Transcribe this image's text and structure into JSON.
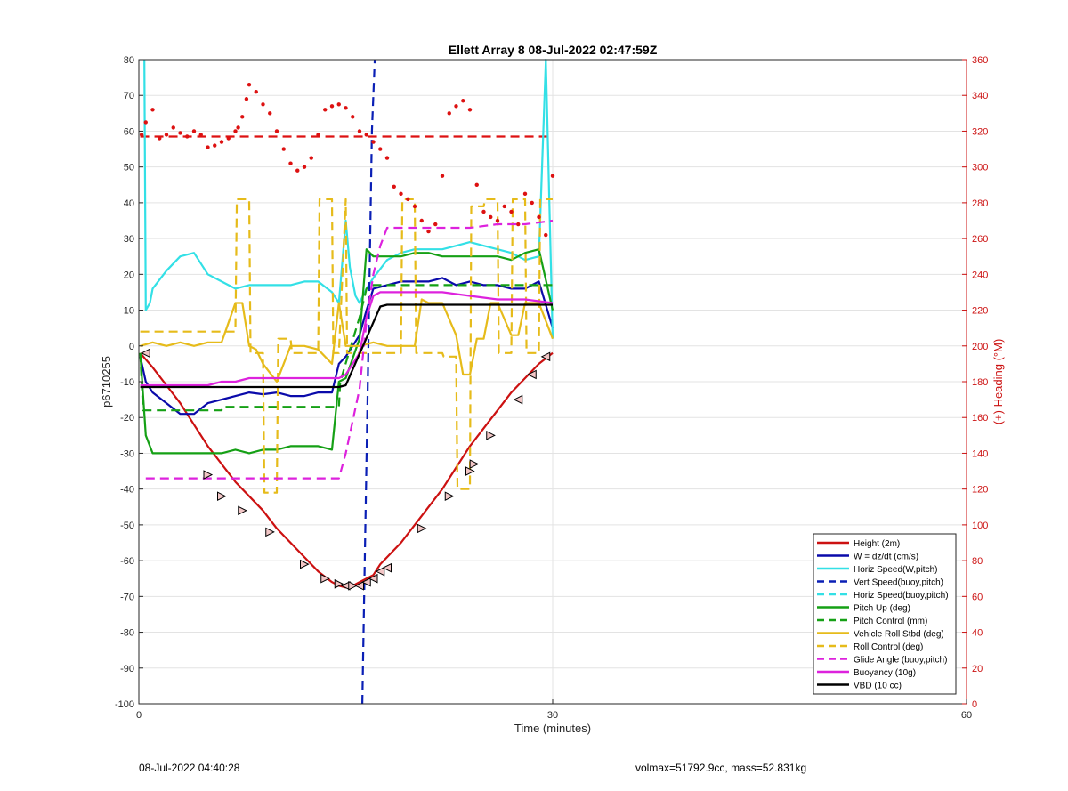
{
  "chart_data": {
    "type": "line",
    "title": "Ellett Array 8 08-Jul-2022 02:47:59Z",
    "xlabel": "Time (minutes)",
    "ylabel": "p6710255",
    "y2label": "(+) Heading (°M)",
    "xlim": [
      0,
      60
    ],
    "ylim": [
      -100,
      80
    ],
    "y2lim": [
      0,
      360
    ],
    "xticks": [
      0,
      30,
      60
    ],
    "yticks": [
      80,
      70,
      60,
      50,
      40,
      30,
      20,
      10,
      0,
      -10,
      -20,
      -30,
      -40,
      -50,
      -60,
      -70,
      -80,
      -90,
      -100
    ],
    "y2ticks": [
      360,
      340,
      320,
      300,
      280,
      260,
      240,
      220,
      200,
      180,
      160,
      140,
      120,
      100,
      80,
      60,
      40,
      20,
      0
    ],
    "grid": true,
    "legend_position": "bottom-right",
    "colors": {
      "height": "#cc1111",
      "w": "#0a0aaa",
      "horiz_w": "#33e0e6",
      "vert_buoy": "#0a1fb5",
      "horiz_buoy": "#33e0e6",
      "pitch": "#15a015",
      "pitch_ctrl": "#15a015",
      "roll": "#e6bb1a",
      "roll_ctrl": "#e6bb1a",
      "glide": "#dd22dd",
      "buoyancy": "#dd22dd",
      "vbd": "#000000",
      "heading": "#dd1111",
      "right_axis": "#cc1111"
    },
    "series": [
      {
        "name": "Height (2m)",
        "style": "solid",
        "color": "#cc1111",
        "x": [
          0.1,
          1,
          2,
          3,
          4,
          5,
          6,
          7,
          8,
          9,
          10,
          11,
          12,
          13,
          14,
          14.5,
          15,
          15.5,
          16,
          16.5,
          17,
          17.5,
          18,
          19,
          20,
          21,
          22,
          23,
          24,
          25,
          26,
          27,
          28,
          29,
          30
        ],
        "values": [
          -2,
          -6,
          -11,
          -16,
          -22,
          -28,
          -33,
          -38,
          -42,
          -46,
          -51,
          -55,
          -59,
          -63,
          -66,
          -67,
          -67.5,
          -67,
          -66,
          -65,
          -64,
          -61,
          -59,
          -55,
          -50,
          -45,
          -40,
          -34,
          -28,
          -23,
          -18,
          -13,
          -9,
          -5,
          -2
        ]
      },
      {
        "name": "W = dz/dt (cm/s)",
        "style": "solid",
        "color": "#0a0aaa",
        "x": [
          0.1,
          0.5,
          1,
          2,
          3,
          4,
          5,
          6,
          7,
          8,
          9,
          10,
          11,
          12,
          13,
          14,
          14.5,
          15,
          16,
          16.5,
          17,
          18,
          19,
          20,
          21,
          22,
          23,
          24,
          25,
          26,
          27,
          28,
          29,
          30
        ],
        "values": [
          -3,
          -10,
          -13,
          -16,
          -19,
          -19,
          -16,
          -15,
          -14,
          -13,
          -13.5,
          -13,
          -14,
          -14,
          -13,
          -13,
          -5,
          -3,
          3,
          10,
          16,
          17,
          18,
          18,
          18,
          19,
          17,
          18,
          17,
          17,
          16,
          16,
          18,
          5
        ]
      },
      {
        "name": "Horiz Speed(W,pitch)",
        "style": "solid",
        "color": "#33e0e6",
        "x": [
          0.4,
          0.5,
          0.8,
          1,
          2,
          3,
          4,
          5,
          6,
          7,
          8,
          9,
          10,
          11,
          12,
          13,
          14,
          14.5,
          15,
          15.3,
          15.7,
          16,
          16.5,
          17,
          18,
          19,
          20,
          21,
          22,
          23,
          24,
          25,
          26,
          27,
          28,
          29,
          29.5,
          30
        ],
        "values": [
          80,
          10,
          12,
          16,
          21,
          25,
          26,
          20,
          18,
          16,
          17,
          17,
          17,
          17,
          18,
          18,
          15,
          12,
          35,
          22,
          14,
          12,
          16,
          19,
          24,
          26,
          27,
          27,
          27,
          28,
          29,
          28,
          27,
          26,
          24,
          25,
          80,
          2
        ]
      },
      {
        "name": "Vert Speed(buoy,pitch)",
        "style": "dashed",
        "color": "#0a1fb5",
        "x": [
          16.2,
          16.6,
          16.9,
          17.1
        ],
        "values": [
          -100,
          -10,
          60,
          80
        ]
      },
      {
        "name": "Horiz Speed(buoy,pitch)",
        "style": "dashed",
        "color": "#33e0e6",
        "x": [],
        "values": []
      },
      {
        "name": "Pitch Up (deg)",
        "style": "solid",
        "color": "#15a015",
        "x": [
          0.1,
          0.5,
          1,
          2,
          3,
          4,
          5,
          6,
          7,
          8,
          9,
          10,
          11,
          12,
          13,
          14,
          14.5,
          15,
          16,
          16.5,
          17,
          18,
          19,
          20,
          21,
          22,
          23,
          24,
          25,
          26,
          27,
          28,
          29,
          30
        ],
        "values": [
          -2,
          -25,
          -30,
          -30,
          -30,
          -30,
          -30,
          -30,
          -29,
          -30,
          -29,
          -29,
          -28,
          -28,
          -28,
          -29,
          -10,
          -9,
          2,
          27,
          25,
          25,
          25,
          26,
          26,
          25,
          25,
          25,
          25,
          25,
          24,
          26,
          27,
          10
        ]
      },
      {
        "name": "Pitch Control (mm)",
        "style": "dashed",
        "color": "#15a015",
        "x": [
          0.1,
          0.3,
          6,
          6.1,
          14.5,
          14.6,
          16,
          16.5,
          17,
          30
        ],
        "values": [
          -2,
          -18,
          -18,
          -17,
          -17,
          -10,
          8,
          16,
          17,
          17
        ]
      },
      {
        "name": "Vehicle Roll Stbd (deg)",
        "style": "solid",
        "color": "#e6bb1a",
        "x": [
          0.1,
          1,
          2,
          3,
          4,
          5,
          6,
          7,
          7.5,
          8,
          8.5,
          9,
          10,
          11,
          12,
          13,
          14,
          14.5,
          15,
          16,
          17,
          18,
          19,
          20,
          20.5,
          21,
          22,
          23,
          23.5,
          24,
          24.5,
          25,
          25.5,
          26,
          27,
          27.5,
          28,
          28.5,
          29,
          30
        ],
        "values": [
          0,
          1,
          0,
          1,
          0,
          1,
          1,
          12,
          12,
          0,
          -1,
          -5,
          -10,
          0,
          0,
          -1,
          -5,
          12,
          0,
          0,
          1,
          0,
          0,
          0,
          13,
          12,
          12,
          3,
          -8,
          -8,
          2,
          2,
          12,
          12,
          3,
          3,
          12,
          12,
          12,
          2
        ]
      },
      {
        "name": "Roll Control (deg)",
        "style": "dashed",
        "color": "#e6bb1a",
        "x": [
          0.1,
          0.3,
          7,
          7.1,
          8,
          8.1,
          9,
          9.1,
          10,
          10.1,
          11,
          11.1,
          13,
          13.1,
          14,
          14.1,
          14.5,
          15,
          15.1,
          17,
          17.1,
          19,
          19.1,
          20,
          20.1,
          22,
          22.1,
          23,
          23.1,
          24,
          24.1,
          25,
          25.1,
          26,
          26.1,
          27,
          27.1,
          28,
          28.1,
          29,
          29.1,
          30
        ],
        "values": [
          4,
          4,
          4,
          41,
          41,
          -2,
          -2,
          -41,
          -41,
          2,
          2,
          -2,
          -2,
          41,
          41,
          -2,
          -2,
          41,
          -2,
          -2,
          -2,
          -2,
          41,
          41,
          -2,
          -2,
          -3,
          -3,
          -40,
          -40,
          39,
          39,
          41,
          41,
          -2,
          -2,
          41,
          41,
          -2,
          -2,
          41,
          41
        ]
      },
      {
        "name": "Glide Angle (buoy,pitch)",
        "style": "dashed",
        "color": "#dd22dd",
        "x": [
          0.5,
          1,
          5,
          10,
          14,
          14.5,
          15,
          16,
          16.5,
          17,
          17.5,
          18,
          19,
          20,
          22,
          24,
          26,
          28,
          30
        ],
        "values": [
          -37,
          -37,
          -37,
          -37,
          -37,
          -37,
          -30,
          -12,
          7,
          20,
          28,
          33,
          33,
          33,
          33,
          33,
          34,
          34,
          35
        ]
      },
      {
        "name": "Buoyancy (10g)",
        "style": "solid",
        "color": "#dd22dd",
        "x": [
          0.1,
          1,
          2,
          3,
          4,
          5,
          6,
          7,
          8,
          9,
          10,
          11,
          12,
          13,
          14,
          14.5,
          15,
          16,
          16.5,
          17,
          17.5,
          18,
          19,
          20,
          22,
          24,
          26,
          28,
          30
        ],
        "values": [
          -11,
          -11,
          -11,
          -11,
          -11,
          -11,
          -10,
          -10,
          -9,
          -9,
          -9,
          -9,
          -9,
          -9,
          -9,
          -9,
          -8,
          -2,
          8,
          14,
          15,
          15,
          15,
          15,
          15,
          14,
          13,
          13,
          12
        ]
      },
      {
        "name": "VBD (10 cc)",
        "style": "solid",
        "color": "#000000",
        "x": [
          0.1,
          1,
          14.5,
          15,
          17.5,
          18,
          30
        ],
        "values": [
          -11.5,
          -11.5,
          -11.5,
          -11,
          11,
          11.5,
          11.5
        ]
      }
    ],
    "heading_series": {
      "axis": "right",
      "reference_value": 317,
      "x": [
        0.2,
        0.5,
        1,
        1.5,
        2,
        2.5,
        3,
        3.5,
        4,
        4.5,
        5,
        5.5,
        6,
        6.5,
        7,
        7.2,
        7.5,
        7.8,
        8,
        8.5,
        9,
        9.5,
        10,
        10.5,
        11,
        11.5,
        12,
        12.5,
        13,
        13.5,
        14,
        14.5,
        15,
        15.5,
        16,
        16.5,
        17,
        17.5,
        18,
        18.5,
        19,
        19.5,
        20,
        20.5,
        21,
        21.5,
        22,
        22.5,
        23,
        23.5,
        24,
        24.5,
        25,
        25.5,
        26,
        26.5,
        27,
        27.5,
        28,
        28.5,
        29,
        29.5,
        30
      ],
      "values": [
        318,
        325,
        332,
        316,
        318,
        322,
        319,
        317,
        320,
        318,
        311,
        312,
        314,
        316,
        320,
        322,
        328,
        338,
        346,
        342,
        335,
        330,
        320,
        310,
        302,
        298,
        300,
        305,
        318,
        332,
        334,
        335,
        333,
        328,
        320,
        318,
        314,
        310,
        305,
        289,
        285,
        282,
        278,
        270,
        264,
        268,
        295,
        330,
        334,
        337,
        332,
        290,
        275,
        272,
        270,
        278,
        275,
        268,
        285,
        280,
        272,
        262,
        295
      ]
    },
    "markers": [
      {
        "x": 0.5,
        "y": -2,
        "dir": "left"
      },
      {
        "x": 5,
        "y": -36,
        "dir": "right"
      },
      {
        "x": 6,
        "y": -42,
        "dir": "right"
      },
      {
        "x": 7.5,
        "y": -46,
        "dir": "right"
      },
      {
        "x": 9.5,
        "y": -52,
        "dir": "right"
      },
      {
        "x": 12,
        "y": -61,
        "dir": "right"
      },
      {
        "x": 13.5,
        "y": -65,
        "dir": "right"
      },
      {
        "x": 14.5,
        "y": -66.5,
        "dir": "right"
      },
      {
        "x": 15,
        "y": -67,
        "dir": "left"
      },
      {
        "x": 15.5,
        "y": -67,
        "dir": "right"
      },
      {
        "x": 16,
        "y": -67,
        "dir": "left"
      },
      {
        "x": 16.5,
        "y": -66,
        "dir": "left"
      },
      {
        "x": 17,
        "y": -65,
        "dir": "left"
      },
      {
        "x": 17.5,
        "y": -63,
        "dir": "left"
      },
      {
        "x": 18,
        "y": -62,
        "dir": "left"
      },
      {
        "x": 20.5,
        "y": -51,
        "dir": "right"
      },
      {
        "x": 22.5,
        "y": -42,
        "dir": "right"
      },
      {
        "x": 24,
        "y": -35,
        "dir": "right"
      },
      {
        "x": 24.3,
        "y": -33,
        "dir": "right"
      },
      {
        "x": 25.5,
        "y": -25,
        "dir": "right"
      },
      {
        "x": 27.5,
        "y": -15,
        "dir": "left"
      },
      {
        "x": 28.5,
        "y": -8,
        "dir": "left"
      },
      {
        "x": 29.5,
        "y": -3,
        "dir": "left"
      }
    ]
  },
  "footer": {
    "timestamp": "08-Jul-2022 04:40:28",
    "stats": "volmax=51792.9cc, mass=52.831kg"
  }
}
